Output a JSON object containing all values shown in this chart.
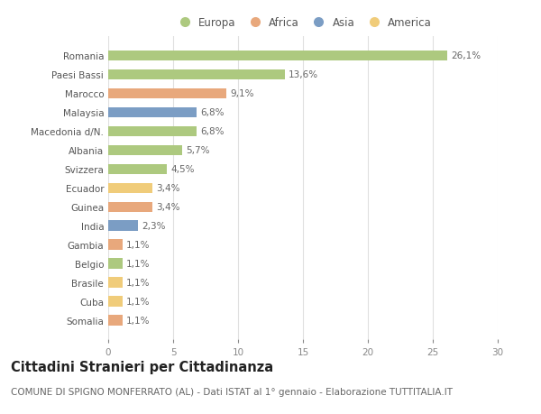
{
  "countries": [
    "Romania",
    "Paesi Bassi",
    "Marocco",
    "Malaysia",
    "Macedonia d/N.",
    "Albania",
    "Svizzera",
    "Ecuador",
    "Guinea",
    "India",
    "Gambia",
    "Belgio",
    "Brasile",
    "Cuba",
    "Somalia"
  ],
  "values": [
    26.1,
    13.6,
    9.1,
    6.8,
    6.8,
    5.7,
    4.5,
    3.4,
    3.4,
    2.3,
    1.1,
    1.1,
    1.1,
    1.1,
    1.1
  ],
  "labels": [
    "26,1%",
    "13,6%",
    "9,1%",
    "6,8%",
    "6,8%",
    "5,7%",
    "4,5%",
    "3,4%",
    "3,4%",
    "2,3%",
    "1,1%",
    "1,1%",
    "1,1%",
    "1,1%",
    "1,1%"
  ],
  "colors": [
    "#adc97f",
    "#adc97f",
    "#e8a87c",
    "#7b9dc4",
    "#adc97f",
    "#adc97f",
    "#adc97f",
    "#f0cc7a",
    "#e8a87c",
    "#7b9dc4",
    "#e8a87c",
    "#adc97f",
    "#f0cc7a",
    "#f0cc7a",
    "#e8a87c"
  ],
  "legend_labels": [
    "Europa",
    "Africa",
    "Asia",
    "America"
  ],
  "legend_colors": [
    "#adc97f",
    "#e8a87c",
    "#7b9dc4",
    "#f0cc7a"
  ],
  "title": "Cittadini Stranieri per Cittadinanza",
  "subtitle": "COMUNE DI SPIGNO MONFERRATO (AL) - Dati ISTAT al 1° gennaio - Elaborazione TUTTITALIA.IT",
  "xlim": [
    0,
    30
  ],
  "xticks": [
    0,
    5,
    10,
    15,
    20,
    25,
    30
  ],
  "background_color": "#ffffff",
  "grid_color": "#e0e0e0",
  "bar_height": 0.55,
  "title_fontsize": 10.5,
  "subtitle_fontsize": 7.5,
  "label_fontsize": 7.5,
  "tick_fontsize": 7.5,
  "legend_fontsize": 8.5
}
